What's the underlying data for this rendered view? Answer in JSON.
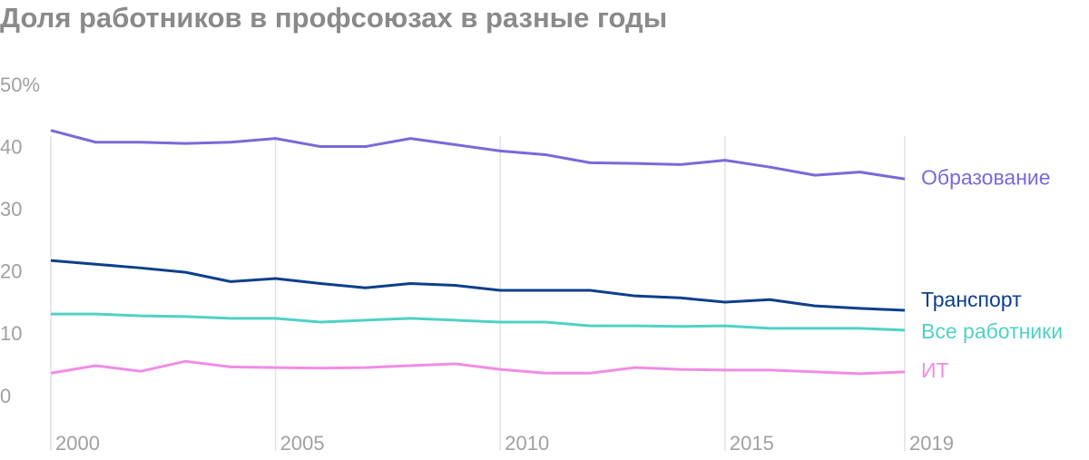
{
  "chart_data": {
    "type": "line",
    "title": "Доля работников в профсоюзах в разные годы",
    "x": [
      2000,
      2001,
      2002,
      2003,
      2004,
      2005,
      2006,
      2007,
      2008,
      2009,
      2010,
      2011,
      2012,
      2013,
      2014,
      2015,
      2016,
      2017,
      2018,
      2019
    ],
    "xlim": [
      2000,
      2019
    ],
    "xticks": [
      2000,
      2005,
      2010,
      2015,
      2019
    ],
    "ylim": [
      0,
      50
    ],
    "yticks": [
      0,
      10,
      20,
      30,
      40,
      {
        "value": 50,
        "label": "50%"
      }
    ],
    "grid": true,
    "series": [
      {
        "name": "Образование",
        "color": "#7b68d9",
        "values": [
          42.9,
          41.0,
          41.0,
          40.8,
          41.0,
          41.6,
          40.3,
          40.3,
          41.6,
          40.6,
          39.6,
          39.0,
          37.7,
          37.6,
          37.4,
          38.1,
          37.0,
          35.7,
          36.2,
          35.1
        ]
      },
      {
        "name": "Транспорт",
        "color": "#0d3f8c",
        "values": [
          22.0,
          21.4,
          20.8,
          20.1,
          18.6,
          19.1,
          18.3,
          17.6,
          18.3,
          18.0,
          17.2,
          17.2,
          17.2,
          16.3,
          16.0,
          15.3,
          15.7,
          14.7,
          14.3,
          14.0
        ]
      },
      {
        "name": "Все работники",
        "color": "#4fd1c5",
        "values": [
          13.4,
          13.4,
          13.1,
          13.0,
          12.7,
          12.7,
          12.1,
          12.4,
          12.7,
          12.4,
          12.1,
          12.1,
          11.5,
          11.5,
          11.4,
          11.5,
          11.1,
          11.1,
          11.1,
          10.8
        ]
      },
      {
        "name": "ИТ",
        "color": "#f08ce6",
        "values": [
          3.9,
          5.1,
          4.2,
          5.8,
          4.9,
          4.8,
          4.7,
          4.8,
          5.1,
          5.4,
          4.5,
          3.9,
          3.9,
          4.8,
          4.5,
          4.4,
          4.4,
          4.1,
          3.8,
          4.1
        ]
      }
    ]
  }
}
